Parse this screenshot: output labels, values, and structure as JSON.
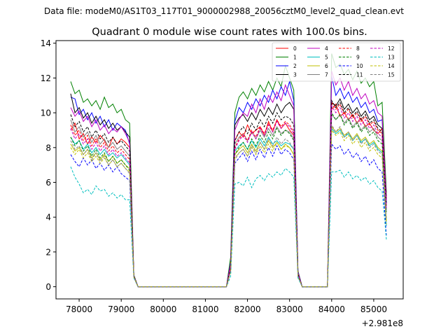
{
  "chart_data": {
    "type": "line",
    "suptitle": "Data file: modeM0/AS1T03_117T01_9000002988_20056cztM0_level2_quad_clean.evt",
    "title": "Quadrant 0 module wise count rates with 100.0s bins.",
    "xlabel": "",
    "ylabel": "",
    "offset_text": "+2.981e8",
    "xlim": [
      77450,
      85700
    ],
    "ylim": [
      -0.7,
      14.15
    ],
    "xticks": [
      78000,
      79000,
      80000,
      81000,
      82000,
      83000,
      84000,
      85000
    ],
    "xtick_labels": [
      "78000",
      "79000",
      "80000",
      "81000",
      "82000",
      "83000",
      "84000",
      "85000"
    ],
    "yticks": [
      0,
      2,
      4,
      6,
      8,
      10,
      12,
      14
    ],
    "ytick_labels": [
      "0",
      "2",
      "4",
      "6",
      "8",
      "10",
      "12",
      "14"
    ],
    "legend_position": "top-right",
    "segments": [
      {
        "x0": 77800,
        "n": 15,
        "then_decay": [
          0.3,
          0.0
        ]
      },
      {
        "x0": 81600,
        "n": 16
      },
      {
        "x0": 83900,
        "n": 15
      }
    ],
    "series": [
      {
        "name": "0",
        "color": "#ff0000",
        "dash": false,
        "values": [
          [
            9.0,
            9.4,
            8.5,
            8.8,
            8.2,
            8.6,
            8.3,
            8.7,
            8.4,
            8.0,
            8.6,
            8.2,
            8.5,
            8.3,
            8.0
          ],
          [
            1.5,
            8.4,
            8.9,
            8.6,
            9.3,
            8.8,
            9.0,
            9.2,
            8.7,
            9.5,
            8.9,
            9.6,
            9.1,
            9.4,
            9.0,
            8.7
          ],
          [
            0.0,
            10.2,
            10.5,
            9.8,
            10.0,
            9.6,
            9.9,
            9.4,
            9.7,
            9.2,
            9.4,
            9.0,
            8.8,
            9.1,
            5.0
          ]
        ]
      },
      {
        "name": "1",
        "color": "#008000",
        "dash": false,
        "values": [
          [
            11.8,
            11.1,
            11.3,
            10.6,
            10.8,
            10.4,
            10.7,
            10.2,
            10.9,
            10.3,
            10.5,
            10.0,
            10.2,
            9.6,
            9.4
          ],
          [
            1.7,
            10.0,
            10.9,
            11.2,
            10.8,
            11.4,
            11.0,
            11.6,
            11.2,
            11.8,
            11.3,
            12.0,
            11.5,
            12.7,
            12.0,
            11.3
          ],
          [
            0.0,
            13.4,
            12.6,
            12.8,
            12.2,
            12.5,
            11.9,
            12.4,
            11.7,
            12.0,
            11.5,
            11.8,
            10.4,
            10.6,
            5.4
          ]
        ]
      },
      {
        "name": "2",
        "color": "#0000ff",
        "dash": false,
        "values": [
          [
            10.9,
            10.8,
            9.9,
            10.2,
            9.6,
            10.0,
            9.4,
            9.8,
            9.2,
            9.6,
            9.0,
            9.4,
            9.2,
            9.0,
            8.2
          ],
          [
            1.4,
            9.5,
            10.3,
            10.0,
            10.6,
            10.2,
            10.8,
            10.4,
            11.0,
            10.6,
            11.3,
            10.8,
            11.5,
            11.0,
            11.8,
            10.7
          ],
          [
            0.0,
            12.1,
            11.0,
            11.4,
            10.8,
            11.2,
            10.6,
            10.9,
            10.3,
            10.6,
            10.0,
            10.2,
            9.5,
            9.6,
            4.8
          ]
        ]
      },
      {
        "name": "3",
        "color": "#000000",
        "dash": false,
        "values": [
          [
            11.1,
            10.0,
            10.3,
            9.7,
            10.0,
            9.4,
            9.8,
            9.3,
            9.6,
            9.1,
            9.4,
            9.0,
            9.2,
            8.9,
            8.6
          ],
          [
            1.2,
            9.3,
            9.7,
            9.9,
            9.5,
            10.0,
            9.6,
            10.2,
            9.8,
            10.3,
            9.9,
            10.5,
            10.0,
            10.4,
            10.6,
            10.2
          ],
          [
            0.0,
            10.6,
            10.4,
            10.8,
            10.2,
            10.5,
            10.0,
            10.3,
            9.8,
            10.1,
            9.6,
            9.8,
            9.3,
            9.1,
            5.2
          ]
        ]
      },
      {
        "name": "4",
        "color": "#bf00bf",
        "dash": false,
        "values": [
          [
            10.3,
            9.8,
            10.1,
            9.5,
            9.8,
            9.2,
            9.6,
            9.0,
            9.3,
            8.8,
            9.1,
            8.9,
            9.2,
            8.8,
            8.3
          ],
          [
            1.3,
            9.0,
            9.6,
            10.0,
            9.8,
            10.5,
            10.0,
            10.8,
            10.2,
            11.0,
            10.6,
            11.2,
            10.7,
            11.6,
            11.0,
            10.4
          ],
          [
            0.0,
            12.4,
            11.6,
            12.0,
            11.3,
            11.8,
            11.0,
            11.4,
            10.8,
            11.1,
            10.5,
            10.7,
            10.0,
            9.8,
            5.0
          ]
        ]
      },
      {
        "name": "5",
        "color": "#00bfbf",
        "dash": false,
        "values": [
          [
            8.6,
            8.2,
            8.4,
            7.9,
            8.2,
            7.7,
            8.0,
            7.6,
            7.9,
            7.5,
            7.7,
            7.4,
            7.6,
            7.3,
            7.0
          ],
          [
            1.0,
            7.8,
            8.1,
            8.3,
            7.9,
            8.4,
            8.0,
            8.5,
            8.1,
            8.6,
            8.2,
            8.4,
            8.1,
            8.3,
            8.2,
            7.9
          ],
          [
            0.0,
            9.1,
            8.8,
            9.0,
            8.6,
            8.8,
            8.4,
            8.7,
            8.3,
            8.5,
            8.1,
            8.3,
            7.9,
            7.7,
            3.5
          ]
        ]
      },
      {
        "name": "6",
        "color": "#bfbf00",
        "dash": false,
        "values": [
          [
            8.2,
            7.8,
            8.0,
            7.6,
            7.9,
            7.4,
            7.7,
            7.3,
            7.6,
            7.2,
            7.5,
            7.1,
            7.3,
            7.0,
            6.8
          ],
          [
            0.9,
            7.6,
            7.9,
            8.1,
            7.7,
            8.2,
            7.8,
            8.3,
            7.9,
            8.4,
            8.0,
            8.3,
            7.9,
            8.2,
            8.0,
            7.6
          ],
          [
            0.0,
            9.2,
            8.9,
            9.1,
            8.7,
            8.9,
            8.5,
            8.8,
            8.4,
            8.6,
            8.2,
            8.4,
            8.0,
            7.8,
            3.8
          ]
        ]
      },
      {
        "name": "7",
        "color": "#808080",
        "dash": false,
        "values": [
          [
            9.6,
            8.9,
            9.2,
            8.6,
            8.9,
            8.3,
            8.7,
            8.2,
            8.5,
            8.0,
            8.3,
            7.9,
            8.1,
            7.8,
            7.5
          ],
          [
            1.1,
            8.2,
            8.6,
            8.8,
            8.4,
            8.9,
            8.5,
            9.0,
            8.6,
            9.1,
            8.7,
            9.2,
            8.8,
            9.0,
            8.9,
            8.5
          ],
          [
            0.0,
            9.9,
            9.6,
            9.9,
            9.4,
            9.7,
            9.2,
            9.5,
            9.0,
            9.3,
            8.9,
            9.1,
            8.6,
            8.4,
            4.3
          ]
        ]
      },
      {
        "name": "8",
        "color": "#ff0000",
        "dash": true,
        "values": [
          [
            9.3,
            8.7,
            9.0,
            8.4,
            8.7,
            8.1,
            8.5,
            8.0,
            8.3,
            7.8,
            8.1,
            7.7,
            7.9,
            7.6,
            7.3
          ],
          [
            1.2,
            8.0,
            8.5,
            8.8,
            8.4,
            9.0,
            8.6,
            9.2,
            8.8,
            9.4,
            9.0,
            9.6,
            9.2,
            9.5,
            9.3,
            8.9
          ],
          [
            0.0,
            10.6,
            10.2,
            10.5,
            9.9,
            10.2,
            9.7,
            10.0,
            9.5,
            9.8,
            9.3,
            9.5,
            9.0,
            8.8,
            4.6
          ]
        ]
      },
      {
        "name": "9",
        "color": "#008000",
        "dash": true,
        "values": [
          [
            8.6,
            8.1,
            8.4,
            7.8,
            8.1,
            7.5,
            7.9,
            7.4,
            7.7,
            7.2,
            7.5,
            7.1,
            7.3,
            7.0,
            6.7
          ],
          [
            1.0,
            7.6,
            8.0,
            8.3,
            7.9,
            8.5,
            8.1,
            8.7,
            8.3,
            8.9,
            8.5,
            9.1,
            8.7,
            9.0,
            8.8,
            8.4
          ],
          [
            0.0,
            10.0,
            9.6,
            9.9,
            9.3,
            9.6,
            9.1,
            9.4,
            8.9,
            9.2,
            8.7,
            8.9,
            8.4,
            8.2,
            4.3
          ]
        ]
      },
      {
        "name": "10",
        "color": "#0000ff",
        "dash": true,
        "values": [
          [
            7.6,
            7.2,
            6.9,
            7.4,
            7.0,
            7.3,
            6.8,
            7.1,
            6.7,
            7.0,
            6.6,
            6.9,
            6.5,
            6.3,
            6.1
          ],
          [
            0.9,
            7.1,
            7.4,
            7.7,
            7.2,
            7.8,
            7.3,
            7.9,
            7.4,
            8.0,
            7.5,
            8.1,
            7.6,
            7.9,
            7.7,
            7.3
          ],
          [
            0.0,
            8.2,
            7.9,
            8.1,
            7.6,
            7.9,
            7.4,
            7.7,
            7.2,
            7.5,
            7.0,
            7.3,
            6.8,
            6.6,
            2.9
          ]
        ]
      },
      {
        "name": "11",
        "color": "#000000",
        "dash": true,
        "values": [
          [
            9.9,
            9.2,
            9.5,
            8.9,
            9.2,
            8.6,
            9.0,
            8.5,
            8.8,
            8.3,
            8.6,
            8.2,
            8.4,
            8.1,
            7.8
          ],
          [
            1.1,
            8.4,
            8.9,
            9.2,
            8.8,
            9.4,
            9.0,
            9.6,
            9.2,
            9.8,
            9.4,
            10.0,
            9.6,
            9.8,
            9.7,
            9.3
          ],
          [
            0.0,
            10.7,
            10.3,
            10.6,
            10.0,
            10.3,
            9.8,
            10.1,
            9.6,
            9.9,
            9.4,
            9.6,
            9.1,
            8.9,
            4.7
          ]
        ]
      },
      {
        "name": "12",
        "color": "#bf00bf",
        "dash": true,
        "values": [
          [
            9.1,
            8.5,
            8.8,
            8.2,
            8.5,
            7.9,
            8.3,
            7.8,
            8.1,
            7.6,
            7.9,
            7.5,
            7.7,
            7.4,
            7.1
          ],
          [
            1.1,
            7.9,
            8.4,
            8.7,
            8.3,
            8.9,
            8.5,
            9.1,
            8.7,
            9.3,
            8.9,
            9.5,
            9.1,
            9.4,
            9.2,
            8.8
          ],
          [
            0.0,
            10.4,
            10.0,
            10.3,
            9.7,
            10.0,
            9.5,
            9.8,
            9.3,
            9.6,
            9.1,
            9.3,
            8.8,
            8.6,
            4.5
          ]
        ]
      },
      {
        "name": "13",
        "color": "#00bfbf",
        "dash": true,
        "values": [
          [
            6.9,
            6.3,
            5.9,
            5.4,
            5.6,
            5.3,
            5.8,
            5.5,
            5.6,
            5.2,
            5.4,
            5.1,
            5.3,
            5.0,
            5.0
          ],
          [
            0.6,
            5.9,
            6.0,
            5.8,
            6.3,
            5.7,
            6.2,
            6.4,
            6.1,
            6.5,
            6.3,
            6.6,
            6.4,
            6.8,
            6.6,
            6.3
          ],
          [
            0.0,
            6.6,
            6.6,
            6.7,
            6.3,
            6.6,
            6.2,
            6.4,
            6.1,
            6.3,
            5.9,
            6.1,
            5.7,
            5.5,
            2.7
          ]
        ]
      },
      {
        "name": "14",
        "color": "#bfbf00",
        "dash": true,
        "values": [
          [
            8.0,
            7.6,
            7.9,
            7.4,
            7.7,
            7.2,
            7.5,
            7.1,
            7.4,
            7.0,
            7.3,
            6.9,
            7.1,
            6.8,
            6.6
          ],
          [
            0.9,
            7.4,
            7.7,
            7.9,
            7.5,
            8.0,
            7.6,
            8.1,
            7.7,
            8.2,
            7.8,
            8.3,
            7.9,
            8.1,
            8.0,
            7.6
          ],
          [
            0.0,
            9.0,
            8.7,
            8.9,
            8.4,
            8.7,
            8.2,
            8.5,
            8.0,
            8.3,
            7.8,
            8.0,
            7.6,
            7.4,
            3.6
          ]
        ]
      },
      {
        "name": "15",
        "color": "#808080",
        "dash": true,
        "values": [
          [
            8.4,
            7.9,
            8.1,
            7.6,
            7.9,
            7.3,
            7.7,
            7.2,
            7.5,
            7.0,
            7.3,
            6.9,
            7.1,
            6.8,
            6.5
          ],
          [
            0.9,
            7.3,
            7.7,
            7.9,
            7.5,
            8.1,
            7.7,
            8.3,
            7.9,
            8.5,
            8.1,
            8.6,
            8.2,
            8.5,
            8.3,
            7.9
          ],
          [
            0.0,
            9.3,
            8.9,
            9.2,
            8.6,
            8.9,
            8.4,
            8.7,
            8.2,
            8.5,
            8.0,
            8.2,
            7.8,
            7.6,
            3.9
          ]
        ]
      }
    ]
  }
}
